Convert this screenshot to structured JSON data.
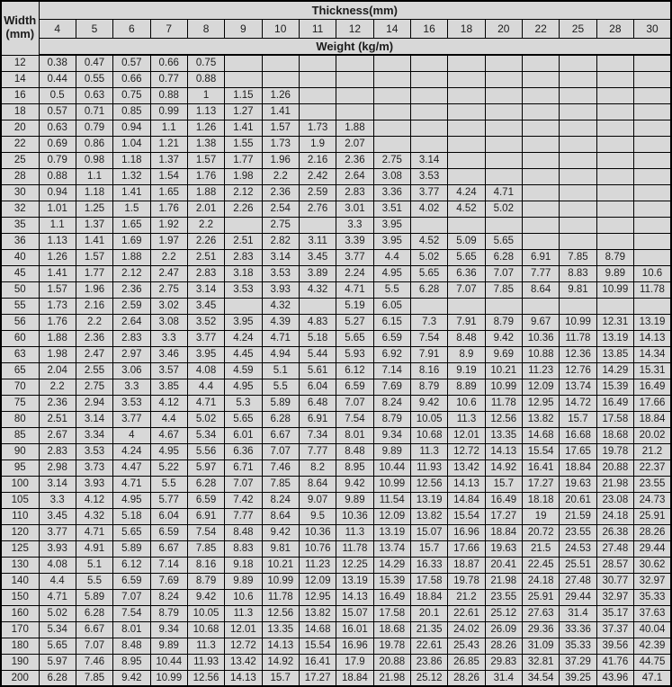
{
  "colors": {
    "table_background": "#d8d8d8",
    "border": "#000000",
    "text": "#1c1c1c"
  },
  "chart_data": {
    "type": "table",
    "corner": {
      "line1": "Width",
      "line2": "(mm)"
    },
    "thickness_title": "Thickness(mm)",
    "weight_title": "Weight (kg/m)",
    "thickness_values": [
      "4",
      "5",
      "6",
      "7",
      "8",
      "9",
      "10",
      "11",
      "12",
      "14",
      "16",
      "18",
      "20",
      "22",
      "25",
      "28",
      "30"
    ],
    "rows": [
      {
        "width": "12",
        "values": [
          "0.38",
          "0.47",
          "0.57",
          "0.66",
          "0.75",
          "",
          "",
          "",
          "",
          "",
          "",
          "",
          "",
          "",
          "",
          "",
          ""
        ]
      },
      {
        "width": "14",
        "values": [
          "0.44",
          "0.55",
          "0.66",
          "0.77",
          "0.88",
          "",
          "",
          "",
          "",
          "",
          "",
          "",
          "",
          "",
          "",
          "",
          ""
        ]
      },
      {
        "width": "16",
        "values": [
          "0.5",
          "0.63",
          "0.75",
          "0.88",
          "1",
          "1.15",
          "1.26",
          "",
          "",
          "",
          "",
          "",
          "",
          "",
          "",
          "",
          ""
        ]
      },
      {
        "width": "18",
        "values": [
          "0.57",
          "0.71",
          "0.85",
          "0.99",
          "1.13",
          "1.27",
          "1.41",
          "",
          "",
          "",
          "",
          "",
          "",
          "",
          "",
          "",
          ""
        ]
      },
      {
        "width": "20",
        "values": [
          "0.63",
          "0.79",
          "0.94",
          "1.1",
          "1.26",
          "1.41",
          "1.57",
          "1.73",
          "1.88",
          "",
          "",
          "",
          "",
          "",
          "",
          "",
          ""
        ]
      },
      {
        "width": "22",
        "values": [
          "0.69",
          "0.86",
          "1.04",
          "1.21",
          "1.38",
          "1.55",
          "1.73",
          "1.9",
          "2.07",
          "",
          "",
          "",
          "",
          "",
          "",
          "",
          ""
        ]
      },
      {
        "width": "25",
        "values": [
          "0.79",
          "0.98",
          "1.18",
          "1.37",
          "1.57",
          "1.77",
          "1.96",
          "2.16",
          "2.36",
          "2.75",
          "3.14",
          "",
          "",
          "",
          "",
          "",
          ""
        ]
      },
      {
        "width": "28",
        "values": [
          "0.88",
          "1.1",
          "1.32",
          "1.54",
          "1.76",
          "1.98",
          "2.2",
          "2.42",
          "2.64",
          "3.08",
          "3.53",
          "",
          "",
          "",
          "",
          "",
          ""
        ]
      },
      {
        "width": "30",
        "values": [
          "0.94",
          "1.18",
          "1.41",
          "1.65",
          "1.88",
          "2.12",
          "2.36",
          "2.59",
          "2.83",
          "3.36",
          "3.77",
          "4.24",
          "4.71",
          "",
          "",
          "",
          ""
        ]
      },
      {
        "width": "32",
        "values": [
          "1.01",
          "1.25",
          "1.5",
          "1.76",
          "2.01",
          "2.26",
          "2.54",
          "2.76",
          "3.01",
          "3.51",
          "4.02",
          "4.52",
          "5.02",
          "",
          "",
          "",
          ""
        ]
      },
      {
        "width": "35",
        "values": [
          "1.1",
          "1.37",
          "1.65",
          "1.92",
          "2.2",
          "",
          "2.75",
          "",
          "3.3",
          "3.95",
          "",
          "",
          "",
          "",
          "",
          "",
          ""
        ]
      },
      {
        "width": "36",
        "values": [
          "1.13",
          "1.41",
          "1.69",
          "1.97",
          "2.26",
          "2.51",
          "2.82",
          "3.11",
          "3.39",
          "3.95",
          "4.52",
          "5.09",
          "5.65",
          "",
          "",
          "",
          ""
        ]
      },
      {
        "width": "40",
        "values": [
          "1.26",
          "1.57",
          "1.88",
          "2.2",
          "2.51",
          "2.83",
          "3.14",
          "3.45",
          "3.77",
          "4.4",
          "5.02",
          "5.65",
          "6.28",
          "6.91",
          "7.85",
          "8.79",
          ""
        ]
      },
      {
        "width": "45",
        "values": [
          "1.41",
          "1.77",
          "2.12",
          "2.47",
          "2.83",
          "3.18",
          "3.53",
          "3.89",
          "2.24",
          "4.95",
          "5.65",
          "6.36",
          "7.07",
          "7.77",
          "8.83",
          "9.89",
          "10.6"
        ]
      },
      {
        "width": "50",
        "values": [
          "1.57",
          "1.96",
          "2.36",
          "2.75",
          "3.14",
          "3.53",
          "3.93",
          "4.32",
          "4.71",
          "5.5",
          "6.28",
          "7.07",
          "7.85",
          "8.64",
          "9.81",
          "10.99",
          "11.78"
        ]
      },
      {
        "width": "55",
        "values": [
          "1.73",
          "2.16",
          "2.59",
          "3.02",
          "3.45",
          "",
          "4.32",
          "",
          "5.19",
          "6.05",
          "",
          "",
          "",
          "",
          "",
          "",
          ""
        ]
      },
      {
        "width": "56",
        "values": [
          "1.76",
          "2.2",
          "2.64",
          "3.08",
          "3.52",
          "3.95",
          "4.39",
          "4.83",
          "5.27",
          "6.15",
          "7.3",
          "7.91",
          "8.79",
          "9.67",
          "10.99",
          "12.31",
          "13.19"
        ]
      },
      {
        "width": "60",
        "values": [
          "1.88",
          "2.36",
          "2.83",
          "3.3",
          "3.77",
          "4.24",
          "4.71",
          "5.18",
          "5.65",
          "6.59",
          "7.54",
          "8.48",
          "9.42",
          "10.36",
          "11.78",
          "13.19",
          "14.13"
        ]
      },
      {
        "width": "63",
        "values": [
          "1.98",
          "2.47",
          "2.97",
          "3.46",
          "3.95",
          "4.45",
          "4.94",
          "5.44",
          "5.93",
          "6.92",
          "7.91",
          "8.9",
          "9.69",
          "10.88",
          "12.36",
          "13.85",
          "14.34"
        ]
      },
      {
        "width": "65",
        "values": [
          "2.04",
          "2.55",
          "3.06",
          "3.57",
          "4.08",
          "4.59",
          "5.1",
          "5.61",
          "6.12",
          "7.14",
          "8.16",
          "9.19",
          "10.21",
          "11.23",
          "12.76",
          "14.29",
          "15.31"
        ]
      },
      {
        "width": "70",
        "values": [
          "2.2",
          "2.75",
          "3.3",
          "3.85",
          "4.4",
          "4.95",
          "5.5",
          "6.04",
          "6.59",
          "7.69",
          "8.79",
          "8.89",
          "10.99",
          "12.09",
          "13.74",
          "15.39",
          "16.49"
        ]
      },
      {
        "width": "75",
        "values": [
          "2.36",
          "2.94",
          "3.53",
          "4.12",
          "4.71",
          "5.3",
          "5.89",
          "6.48",
          "7.07",
          "8.24",
          "9.42",
          "10.6",
          "11.78",
          "12.95",
          "14.72",
          "16.49",
          "17.66"
        ]
      },
      {
        "width": "80",
        "values": [
          "2.51",
          "3.14",
          "3.77",
          "4.4",
          "5.02",
          "5.65",
          "6.28",
          "6.91",
          "7.54",
          "8.79",
          "10.05",
          "11.3",
          "12.56",
          "13.82",
          "15.7",
          "17.58",
          "18.84"
        ]
      },
      {
        "width": "85",
        "values": [
          "2.67",
          "3.34",
          "4",
          "4.67",
          "5.34",
          "6.01",
          "6.67",
          "7.34",
          "8.01",
          "9.34",
          "10.68",
          "12.01",
          "13.35",
          "14.68",
          "16.68",
          "18.68",
          "20.02"
        ]
      },
      {
        "width": "90",
        "values": [
          "2.83",
          "3.53",
          "4.24",
          "4.95",
          "5.56",
          "6.36",
          "7.07",
          "7.77",
          "8.48",
          "9.89",
          "11.3",
          "12.72",
          "14.13",
          "15.54",
          "17.65",
          "19.78",
          "21.2"
        ]
      },
      {
        "width": "95",
        "values": [
          "2.98",
          "3.73",
          "4.47",
          "5.22",
          "5.97",
          "6.71",
          "7.46",
          "8.2",
          "8.95",
          "10.44",
          "11.93",
          "13.42",
          "14.92",
          "16.41",
          "18.84",
          "20.88",
          "22.37"
        ]
      },
      {
        "width": "100",
        "values": [
          "3.14",
          "3.93",
          "4.71",
          "5.5",
          "6.28",
          "7.07",
          "7.85",
          "8.64",
          "9.42",
          "10.99",
          "12.56",
          "14.13",
          "15.7",
          "17.27",
          "19.63",
          "21.98",
          "23.55"
        ]
      },
      {
        "width": "105",
        "values": [
          "3.3",
          "4.12",
          "4.95",
          "5.77",
          "6.59",
          "7.42",
          "8.24",
          "9.07",
          "9.89",
          "11.54",
          "13.19",
          "14.84",
          "16.49",
          "18.18",
          "20.61",
          "23.08",
          "24.73"
        ]
      },
      {
        "width": "110",
        "values": [
          "3.45",
          "4.32",
          "5.18",
          "6.04",
          "6.91",
          "7.77",
          "8.64",
          "9.5",
          "10.36",
          "12.09",
          "13.82",
          "15.54",
          "17.27",
          "19",
          "21.59",
          "24.18",
          "25.91"
        ]
      },
      {
        "width": "120",
        "values": [
          "3.77",
          "4.71",
          "5.65",
          "6.59",
          "7.54",
          "8.48",
          "9.42",
          "10.36",
          "11.3",
          "13.19",
          "15.07",
          "16.96",
          "18.84",
          "20.72",
          "23.55",
          "26.38",
          "28.26"
        ]
      },
      {
        "width": "125",
        "values": [
          "3.93",
          "4.91",
          "5.89",
          "6.67",
          "7.85",
          "8.83",
          "9.81",
          "10.76",
          "11.78",
          "13.74",
          "15.7",
          "17.66",
          "19.63",
          "21.5",
          "24.53",
          "27.48",
          "29.44"
        ]
      },
      {
        "width": "130",
        "values": [
          "4.08",
          "5.1",
          "6.12",
          "7.14",
          "8.16",
          "9.18",
          "10.21",
          "11.23",
          "12.25",
          "14.29",
          "16.33",
          "18.87",
          "20.41",
          "22.45",
          "25.51",
          "28.57",
          "30.62"
        ]
      },
      {
        "width": "140",
        "values": [
          "4.4",
          "5.5",
          "6.59",
          "7.69",
          "8.79",
          "9.89",
          "10.99",
          "12.09",
          "13.19",
          "15.39",
          "17.58",
          "19.78",
          "21.98",
          "24.18",
          "27.48",
          "30.77",
          "32.97"
        ]
      },
      {
        "width": "150",
        "values": [
          "4.71",
          "5.89",
          "7.07",
          "8.24",
          "9.42",
          "10.6",
          "11.78",
          "12.95",
          "14.13",
          "16.49",
          "18.84",
          "21.2",
          "23.55",
          "25.91",
          "29.44",
          "32.97",
          "35.33"
        ]
      },
      {
        "width": "160",
        "values": [
          "5.02",
          "6.28",
          "7.54",
          "8.79",
          "10.05",
          "11.3",
          "12.56",
          "13.82",
          "15.07",
          "17.58",
          "20.1",
          "22.61",
          "25.12",
          "27.63",
          "31.4",
          "35.17",
          "37.63"
        ]
      },
      {
        "width": "170",
        "values": [
          "5.34",
          "6.67",
          "8.01",
          "9.34",
          "10.68",
          "12.01",
          "13.35",
          "14.68",
          "16.01",
          "18.68",
          "21.35",
          "24.02",
          "26.09",
          "29.36",
          "33.36",
          "37.37",
          "40.04"
        ]
      },
      {
        "width": "180",
        "values": [
          "5.65",
          "7.07",
          "8.48",
          "9.89",
          "11.3",
          "12.72",
          "14.13",
          "15.54",
          "16.96",
          "19.78",
          "22.61",
          "25.43",
          "28.26",
          "31.09",
          "35.33",
          "39.56",
          "42.39"
        ]
      },
      {
        "width": "190",
        "values": [
          "5.97",
          "7.46",
          "8.95",
          "10.44",
          "11.93",
          "13.42",
          "14.92",
          "16.41",
          "17.9",
          "20.88",
          "23.86",
          "26.85",
          "29.83",
          "32.81",
          "37.29",
          "41.76",
          "44.75"
        ]
      },
      {
        "width": "200",
        "values": [
          "6.28",
          "7.85",
          "9.42",
          "10.99",
          "12.56",
          "14.13",
          "15.7",
          "17.27",
          "18.84",
          "21.98",
          "25.12",
          "28.26",
          "31.4",
          "34.54",
          "39.25",
          "43.96",
          "47.1"
        ]
      }
    ]
  }
}
